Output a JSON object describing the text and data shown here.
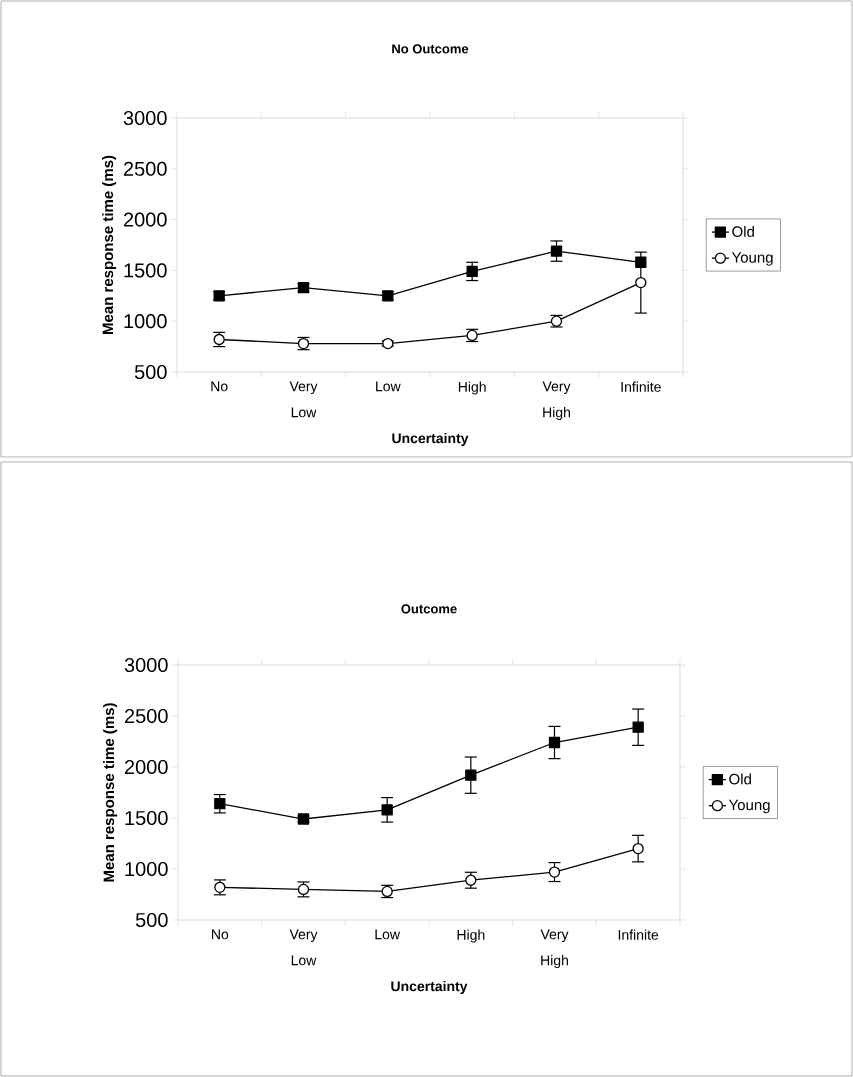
{
  "chart_data": [
    {
      "type": "line",
      "title": "No Outcome",
      "xlabel": "Uncertainty",
      "ylabel": "Mean response time (ms)",
      "categories": [
        "No",
        "Very Low",
        "Low",
        "High",
        "Very High",
        "Infinite"
      ],
      "ylim": [
        500,
        3000
      ],
      "yticks": [
        500,
        1000,
        1500,
        2000,
        2500,
        3000
      ],
      "legend": "right",
      "series": [
        {
          "name": "Old",
          "color": "#000000",
          "marker": "square",
          "values": [
            1250,
            1330,
            1250,
            1490,
            1690,
            1580
          ],
          "errors": [
            40,
            40,
            40,
            90,
            100,
            null
          ]
        },
        {
          "name": "Young",
          "color": "#000000",
          "marker": "circle",
          "values": [
            820,
            780,
            780,
            860,
            1000,
            1380
          ],
          "errors": [
            70,
            60,
            25,
            60,
            57,
            300
          ]
        }
      ]
    },
    {
      "type": "line",
      "title": "Outcome",
      "xlabel": "Uncertainty",
      "ylabel": "Mean response time (ms)",
      "categories": [
        "No",
        "Very Low",
        "Low",
        "High",
        "Very High",
        "Infinite"
      ],
      "ylim": [
        500,
        3000
      ],
      "yticks": [
        500,
        1000,
        1500,
        2000,
        2500,
        3000
      ],
      "legend": "right",
      "series": [
        {
          "name": "Old",
          "color": "#000000",
          "marker": "square",
          "values": [
            1640,
            1490,
            1580,
            1920,
            2240,
            2390
          ],
          "errors": [
            90,
            30,
            120,
            178,
            158,
            178
          ]
        },
        {
          "name": "Young",
          "color": "#000000",
          "marker": "circle",
          "values": [
            820,
            800,
            780,
            890,
            970,
            1200
          ],
          "errors": [
            73,
            73,
            60,
            78,
            93,
            130
          ]
        }
      ]
    }
  ]
}
